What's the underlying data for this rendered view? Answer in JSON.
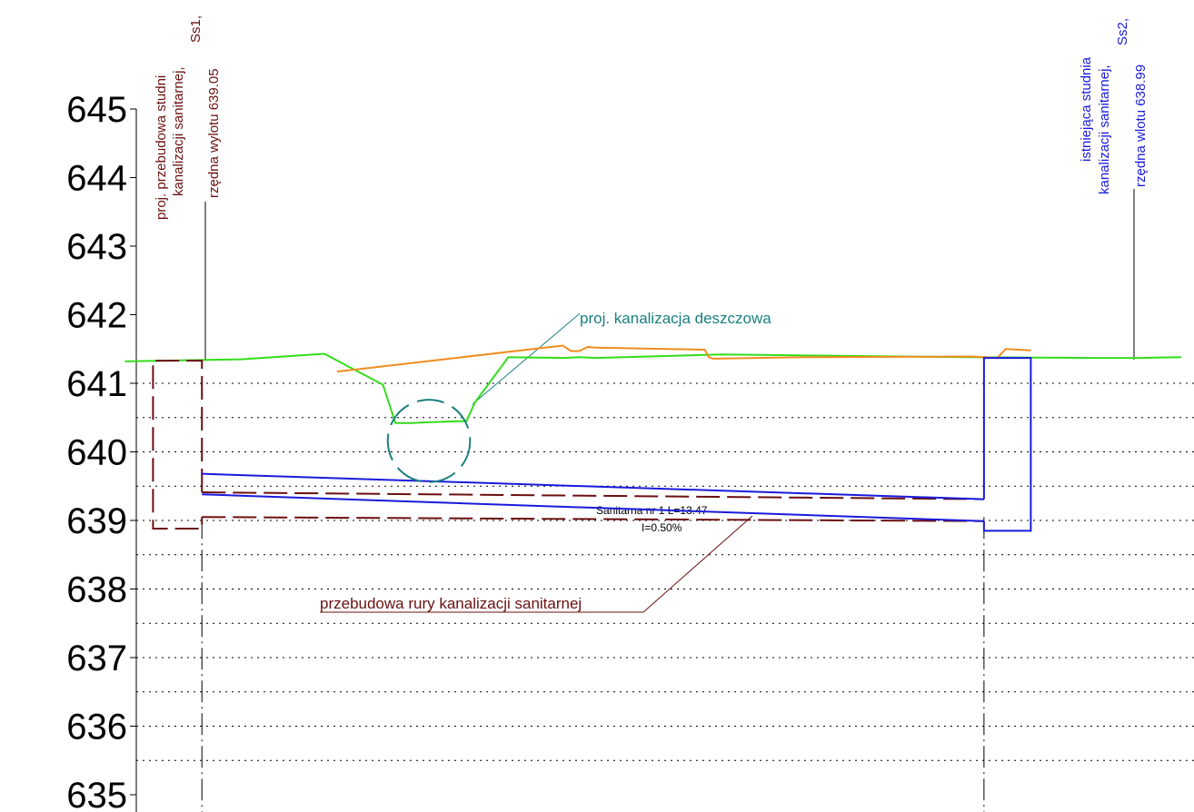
{
  "colors": {
    "axis": "#000000",
    "grid": "#000000",
    "terrain_green": "#33dd1a",
    "terrain_orange": "#f08c1e",
    "sanitary_blue": "#1a1adc",
    "sanitary_reconstruction": "#6b1010",
    "storm_teal": "#1a8080"
  },
  "chart_data": {
    "type": "line",
    "y_unit": "m",
    "ylim": [
      635,
      645.5
    ],
    "y_ticks": [
      "645",
      "644",
      "643",
      "642",
      "641",
      "640",
      "639",
      "638",
      "637",
      "636",
      "635"
    ],
    "series": [
      {
        "key": "terrain_green",
        "x": [
          -0.27,
          2.5,
          4.5,
          5.9,
          6.2,
          6.6,
          6.9,
          7.9,
          8.1,
          8.9,
          10.2,
          10.6,
          11.0,
          14.0,
          20.0,
          23.0,
          24.0,
          25.0
        ],
        "y": [
          641.32,
          641.35,
          641.43,
          640.98,
          640.42,
          640.42,
          640.43,
          640.45,
          640.72,
          641.38,
          641.37,
          641.38,
          641.37,
          641.42,
          641.38,
          641.37,
          641.37,
          641.38
        ]
      },
      {
        "key": "terrain_orange",
        "x": [
          4.8,
          10.2,
          10.4,
          10.6,
          10.8,
          11.0,
          13.6,
          13.7,
          13.8,
          16.0,
          20.0,
          20.6,
          20.8,
          21.4
        ],
        "y": [
          641.17,
          641.55,
          641.47,
          641.47,
          641.53,
          641.52,
          641.49,
          641.38,
          641.36,
          641.38,
          641.39,
          641.37,
          641.5,
          641.48
        ]
      }
    ]
  },
  "elements": {
    "manhole_ss1": {
      "label_lines": [
        "proj. przebudowa studni",
        "kanalizacji sanitarnej,",
        "Ss1,",
        "rzędna wylotu 639.05"
      ],
      "x_left": 0.4,
      "x_right": 1.57,
      "top": 641.33,
      "bottom": 638.88
    },
    "manhole_ss2": {
      "label_lines": [
        "istniejąca studnia",
        "kanalizacji sanitarnej,",
        "Ss2,",
        "rzędna wlotu 638.99"
      ],
      "x_left": 20.28,
      "x_right": 21.4,
      "top": 641.37,
      "bottom": 638.85
    },
    "sanitary_existing": {
      "x": [
        1.57,
        20.28
      ],
      "top": [
        639.68,
        639.31
      ],
      "bottom": [
        639.38,
        638.99
      ]
    },
    "sanitary_reconstruction": {
      "x": [
        1.57,
        20.28
      ],
      "top": [
        639.41,
        639.31
      ],
      "bottom": [
        639.05,
        638.99
      ]
    },
    "storm_pipe": {
      "label": "proj. kanalizacja deszczowa",
      "cx": 7.0,
      "cy": 640.16,
      "radius": 0.6
    },
    "pipe_label": {
      "name": "Sanitarna nr 1 L=13.47",
      "slope": "I=0.50%"
    },
    "reconstruction_label": "przebudowa rury kanalizacji sanitarnej"
  }
}
